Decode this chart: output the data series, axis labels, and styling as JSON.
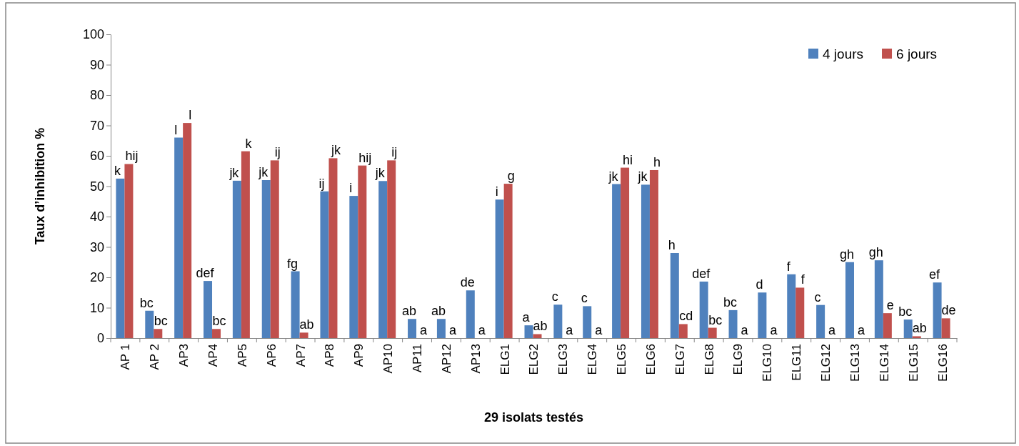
{
  "chart_data": {
    "type": "bar",
    "ylabel": "Taux d’inhibition %",
    "xlabel": "29 isolats testés",
    "categories": [
      "AP 1",
      "AP 2",
      "AP3",
      "AP4",
      "AP5",
      "AP6",
      "AP7",
      "AP8",
      "AP9",
      "AP10",
      "AP11",
      "AP12",
      "AP13",
      "ELG1",
      "ELG2",
      "ELG3",
      "ELG4",
      "ELG5",
      "ELG6",
      "ELG7",
      "ELG8",
      "ELG9",
      "ELG10",
      "ELG11",
      "ELG12",
      "ELG13",
      "ELG14",
      "ELG15",
      "ELG16"
    ],
    "series": [
      {
        "name": "4 jours",
        "color": "#4f81bd",
        "values": [
          52.5,
          9,
          66,
          18.8,
          51.8,
          52,
          22,
          48.3,
          46.8,
          51.7,
          6.3,
          6.3,
          15.7,
          45.6,
          4.2,
          11,
          10.5,
          50.7,
          50.5,
          28,
          18.6,
          9.2,
          15,
          21,
          10.9,
          25,
          25.6,
          6.1,
          18.3
        ],
        "value_labels": [
          "k",
          "bc",
          "l",
          "def",
          "jk",
          "jk",
          "fg",
          "ij",
          "i",
          "jk",
          "ab",
          "ab",
          "de",
          "i",
          "a",
          "c",
          "c",
          "jk",
          "jk",
          "h",
          "def",
          "bc",
          "d",
          "f",
          "c",
          "gh",
          "gh",
          "bc",
          "ef"
        ]
      },
      {
        "name": "6 jours",
        "color": "#c0504d",
        "values": [
          57.3,
          3,
          70.8,
          3,
          61.5,
          58.5,
          1.8,
          59.2,
          56.8,
          58.5,
          0,
          0,
          0,
          50.8,
          1.3,
          0,
          0,
          56.1,
          55.3,
          4.6,
          3.4,
          0,
          0,
          16.6,
          0,
          0,
          8.2,
          0.6,
          6.5
        ],
        "value_labels": [
          "hij",
          "bc",
          "l",
          "bc",
          "k",
          "ij",
          "ab",
          "jk",
          "hij",
          "ij",
          "a",
          "a",
          "a",
          "g",
          "ab",
          "a",
          "a",
          "hi",
          "h",
          "cd",
          "bc",
          "a",
          "a",
          "f",
          "a",
          "a",
          "e",
          "ab",
          "de"
        ]
      }
    ],
    "ylim": [
      0,
      100
    ],
    "yticks": [
      0,
      10,
      20,
      30,
      40,
      50,
      60,
      70,
      80,
      90,
      100
    ],
    "grid": false,
    "legend": "top right"
  }
}
